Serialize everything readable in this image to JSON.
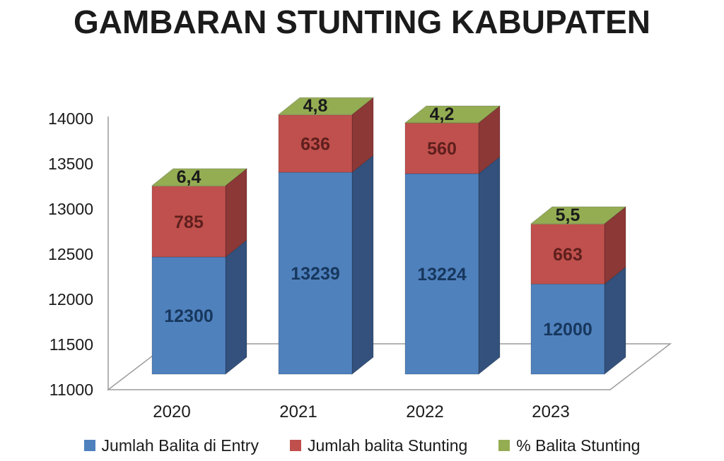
{
  "title": "GAMBARAN STUNTING KABUPATEN",
  "chart_data": {
    "type": "bar",
    "subtype": "3d-stacked-column",
    "title": "GAMBARAN STUNTING KABUPATEN",
    "categories": [
      "2020",
      "2021",
      "2022",
      "2023"
    ],
    "series": [
      {
        "name": "Jumlah Balita di Entry",
        "color": "#4F81BD",
        "side_color": "#33517C",
        "label_color": "#17375D",
        "values": [
          12300,
          13239,
          13224,
          12000
        ],
        "labels": [
          "12300",
          "13239",
          "13224",
          "12000"
        ]
      },
      {
        "name": "Jumlah balita Stunting",
        "color": "#C0504D",
        "side_color": "#8C3836",
        "label_color": "#5E1F1D",
        "values": [
          785,
          636,
          560,
          663
        ],
        "labels": [
          "785",
          "636",
          "560",
          "663"
        ]
      },
      {
        "name": "% Balita Stunting",
        "color": "#94AD53",
        "side_color": "#75893D",
        "label_color": "#1b1b1b",
        "values": [
          6.4,
          4.8,
          4.2,
          5.5
        ],
        "labels": [
          "6,4",
          "4,8",
          "4,2",
          "5,5"
        ]
      }
    ],
    "xlabel": "",
    "ylabel": "",
    "ylim": [
      11000,
      14000
    ],
    "yticks": [
      11000,
      11500,
      12000,
      12500,
      13000,
      13500,
      14000
    ],
    "grid": false,
    "legend_position": "bottom",
    "axis_color": "#9c9c9c",
    "text_color": "#1b1b1b",
    "background": "#ffffff"
  }
}
